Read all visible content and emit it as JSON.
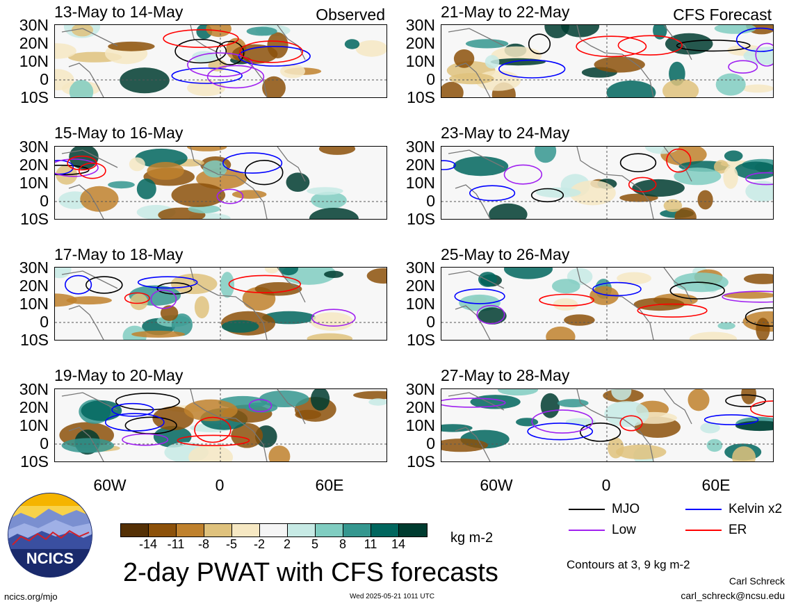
{
  "panels": [
    {
      "title": "13-May to 14-May",
      "tag": "Observed"
    },
    {
      "title": "21-May to 22-May",
      "tag": "CFS Forecast"
    },
    {
      "title": "15-May to 16-May",
      "tag": ""
    },
    {
      "title": "23-May to 24-May",
      "tag": ""
    },
    {
      "title": "17-May to 18-May",
      "tag": ""
    },
    {
      "title": "25-May to 26-May",
      "tag": ""
    },
    {
      "title": "19-May to 20-May",
      "tag": ""
    },
    {
      "title": "27-May to 28-May",
      "tag": ""
    }
  ],
  "lat_labels": [
    "30N",
    "20N",
    "10N",
    "0",
    "10S"
  ],
  "lon_labels": [
    "60W",
    "0",
    "60E"
  ],
  "colorbar": {
    "colors": [
      "#543005",
      "#8c510a",
      "#bf812d",
      "#dfc27d",
      "#f6e8c3",
      "#f5f5f5",
      "#c7eae5",
      "#80cdc1",
      "#35978f",
      "#01665e",
      "#003c30"
    ],
    "labels": [
      "-14",
      "-11",
      "-8",
      "-5",
      "-2",
      "2",
      "5",
      "8",
      "11",
      "14"
    ]
  },
  "units": "kg m-2",
  "title": "2-day PWAT with CFS forecasts",
  "legend": [
    {
      "label": "MJO",
      "color": "#000000"
    },
    {
      "label": "Kelvin x2",
      "color": "#0000ff"
    },
    {
      "label": "Low",
      "color": "#a020f0"
    },
    {
      "label": "ER",
      "color": "#ff0000"
    }
  ],
  "contour_note": "Contours at 3, 9 kg m-2",
  "author": "Carl Schreck",
  "email": "carl_schreck@ncsu.edu",
  "site": "ncics.org/mjo",
  "timestamp": "Wed 2025-05-21 1011 UTC",
  "logo_text": "NCICS"
}
